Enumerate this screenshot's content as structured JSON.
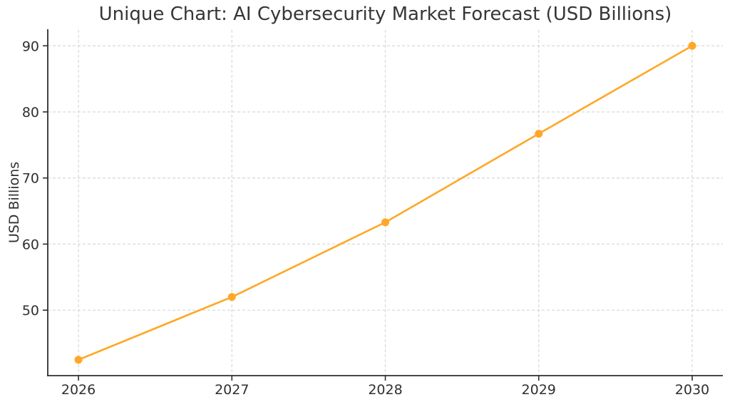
{
  "page": {
    "background_color": "#ffffff"
  },
  "chart_data": {
    "type": "line",
    "title": "Unique Chart: AI Cybersecurity Market Forecast (USD Billions)",
    "xlabel": "",
    "ylabel": "USD Billions",
    "categories": [
      2026,
      2027,
      2028,
      2029,
      2030
    ],
    "x_tick_labels": [
      "2026",
      "2027",
      "2028",
      "2029",
      "2030"
    ],
    "values": [
      42.5,
      52.0,
      63.3,
      76.7,
      90.0
    ],
    "y_ticks": [
      50,
      60,
      70,
      80,
      90
    ],
    "xlim": [
      2025.8,
      2030.2
    ],
    "ylim": [
      40.1,
      92.4
    ],
    "grid": true,
    "legend": false,
    "line_color": "#FFA726",
    "marker": "circle",
    "grid_color": "#d7d7d7",
    "spine_color": "#2e2e2e",
    "text_color": "#303030"
  }
}
